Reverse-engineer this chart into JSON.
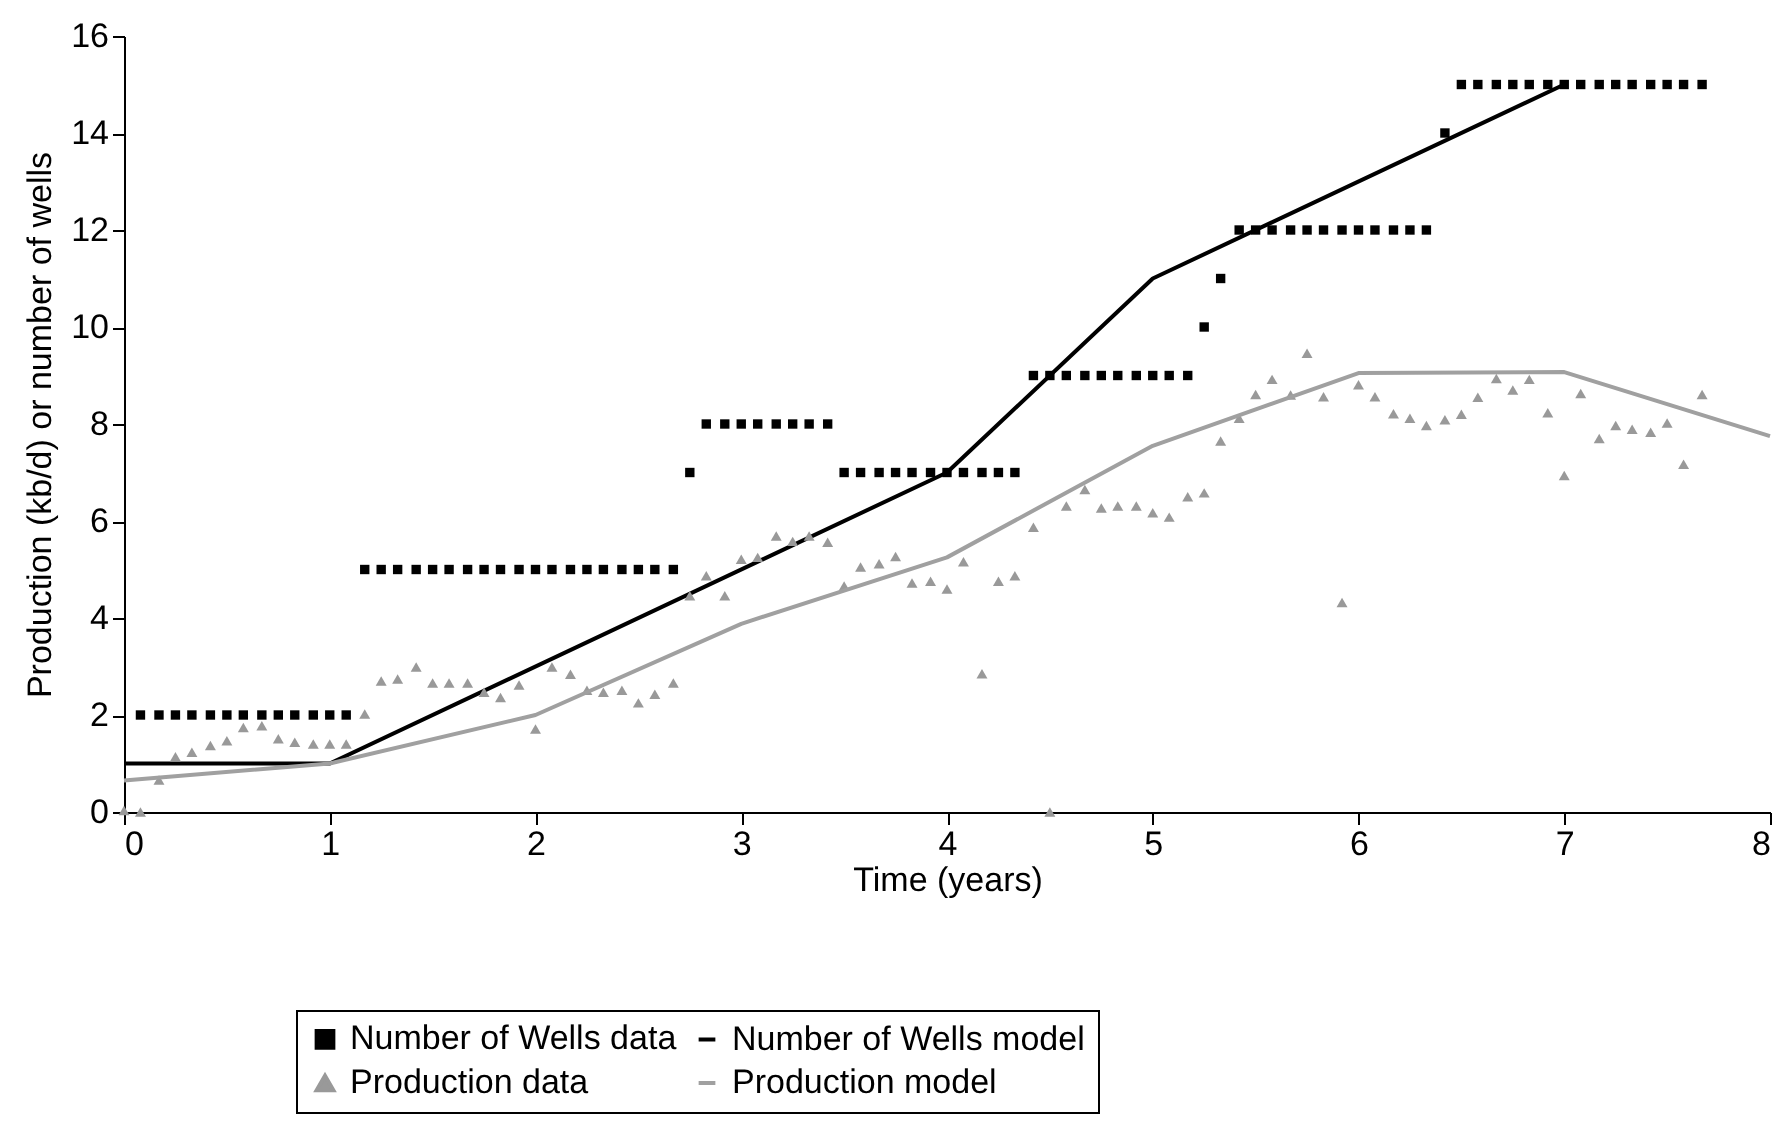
{
  "chart_data": {
    "type": "scatter",
    "xlabel": "Time (years)",
    "ylabel": "Production (kb/d) or number of wells",
    "xlim": [
      0,
      8
    ],
    "xticks": [
      0,
      1,
      2,
      3,
      4,
      5,
      6,
      7,
      8
    ],
    "ylim": [
      0,
      16
    ],
    "yticks": [
      0,
      2,
      4,
      6,
      8,
      10,
      12,
      14,
      16
    ],
    "grid": false,
    "legend": "bottom",
    "series": [
      {
        "name": "Number of Wells data",
        "type": "scatter",
        "marker": "square",
        "color": "#000000",
        "x": [
          0.08,
          0.17,
          0.25,
          0.33,
          0.42,
          0.5,
          0.58,
          0.67,
          0.75,
          0.83,
          0.92,
          1,
          1.08,
          1.17,
          1.25,
          1.33,
          1.42,
          1.5,
          1.58,
          1.67,
          1.75,
          1.83,
          1.92,
          2,
          2.08,
          2.17,
          2.25,
          2.33,
          2.42,
          2.5,
          2.58,
          2.67,
          2.75,
          2.83,
          2.92,
          3,
          3.08,
          3.17,
          3.25,
          3.33,
          3.42,
          3.5,
          3.58,
          3.67,
          3.75,
          3.83,
          3.92,
          4,
          4.08,
          4.17,
          4.25,
          4.33,
          4.42,
          4.5,
          4.58,
          4.67,
          4.75,
          4.83,
          4.92,
          5,
          5.08,
          5.17,
          5.25,
          5.33,
          5.42,
          5.5,
          5.58,
          5.67,
          5.75,
          5.83,
          5.92,
          6,
          6.08,
          6.17,
          6.25,
          6.33,
          6.42,
          6.5,
          6.58,
          6.67,
          6.75,
          6.83,
          6.92,
          7,
          7.08,
          7.17,
          7.25,
          7.33,
          7.42,
          7.5,
          7.58,
          7.67
        ],
        "values": [
          2,
          2,
          2,
          2,
          2,
          2,
          2,
          2,
          2,
          2,
          2,
          2,
          2,
          5,
          5,
          5,
          5,
          5,
          5,
          5,
          5,
          5,
          5,
          5,
          5,
          5,
          5,
          5,
          5,
          5,
          5,
          5,
          7,
          8,
          8,
          8,
          8,
          8,
          8,
          8,
          8,
          7,
          7,
          7,
          7,
          7,
          7,
          7,
          7,
          7,
          7,
          7,
          9,
          9,
          9,
          9,
          9,
          9,
          9,
          9,
          9,
          9,
          10,
          11,
          12,
          12,
          12,
          12,
          12,
          12,
          12,
          12,
          12,
          12,
          12,
          12,
          14,
          15,
          15,
          15,
          15,
          15,
          15,
          15,
          15,
          15,
          15,
          15,
          15,
          15,
          15,
          15
        ]
      },
      {
        "name": "Number of Wells model",
        "type": "line",
        "marker": "none",
        "color": "#000000",
        "x": [
          0,
          1,
          4,
          5,
          7
        ],
        "values": [
          1,
          1,
          7,
          11,
          15
        ]
      },
      {
        "name": "Production data",
        "type": "scatter",
        "marker": "triangle",
        "color": "#999999",
        "x": [
          0,
          0.08,
          0.17,
          0.25,
          0.33,
          0.42,
          0.5,
          0.58,
          0.67,
          0.75,
          0.83,
          0.92,
          1,
          1.08,
          1.17,
          1.25,
          1.33,
          1.42,
          1.5,
          1.58,
          1.67,
          1.75,
          1.83,
          1.92,
          2,
          2.08,
          2.17,
          2.25,
          2.33,
          2.42,
          2.5,
          2.58,
          2.67,
          2.75,
          2.83,
          2.92,
          3,
          3.08,
          3.17,
          3.25,
          3.33,
          3.42,
          3.5,
          3.58,
          3.67,
          3.75,
          3.83,
          3.92,
          4,
          4.08,
          4.17,
          4.25,
          4.33,
          4.42,
          4.5,
          4.58,
          4.67,
          4.75,
          4.83,
          4.92,
          5,
          5.08,
          5.17,
          5.25,
          5.33,
          5.42,
          5.5,
          5.58,
          5.67,
          5.75,
          5.83,
          5.92,
          6,
          6.08,
          6.17,
          6.25,
          6.33,
          6.42,
          6.5,
          6.58,
          6.67,
          6.75,
          6.83,
          6.92,
          7,
          7.08,
          7.17,
          7.25,
          7.33,
          7.42,
          7.5,
          7.58,
          7.67
        ],
        "values": [
          0.03,
          0,
          0.66,
          1.14,
          1.23,
          1.37,
          1.47,
          1.74,
          1.78,
          1.51,
          1.44,
          1.4,
          1.4,
          1.4,
          2.02,
          2.7,
          2.74,
          2.99,
          2.66,
          2.66,
          2.66,
          2.47,
          2.36,
          2.62,
          1.71,
          2.99,
          2.84,
          2.51,
          2.47,
          2.51,
          2.25,
          2.43,
          2.66,
          4.46,
          4.87,
          4.46,
          5.21,
          5.25,
          5.69,
          5.58,
          5.69,
          5.56,
          4.66,
          5.05,
          5.12,
          5.27,
          4.72,
          4.76,
          4.6,
          5.16,
          2.85,
          4.76,
          4.87,
          5.87,
          0,
          6.31,
          6.65,
          6.27,
          6.31,
          6.31,
          6.17,
          6.08,
          6.5,
          6.58,
          7.65,
          8.12,
          8.61,
          8.92,
          8.6,
          9.46,
          8.56,
          4.32,
          8.81,
          8.56,
          8.21,
          8.12,
          7.97,
          8.09,
          8.2,
          8.55,
          8.94,
          8.7,
          8.92,
          8.23,
          6.94,
          8.63,
          7.7,
          7.97,
          7.89,
          7.83,
          8.02,
          7.17,
          8.61
        ]
      },
      {
        "name": "Production model",
        "type": "line",
        "marker": "none",
        "color": "#a0a0a0",
        "x": [
          0,
          1,
          2,
          3,
          4,
          5,
          6,
          7,
          8
        ],
        "values": [
          0.65,
          1,
          2,
          3.88,
          5.25,
          7.55,
          9.05,
          9.07,
          7.75
        ]
      }
    ]
  }
}
